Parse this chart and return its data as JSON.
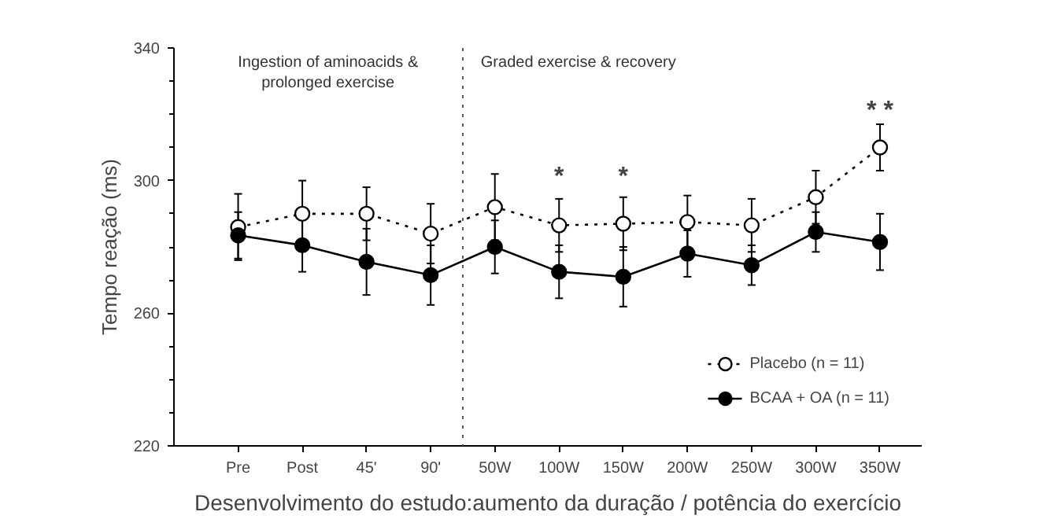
{
  "chart_data": {
    "type": "line",
    "xlabel": "Desenvolvimento do estudo:aumento da duração / potência do exercício",
    "ylabel": "Tempo reação (ms)",
    "categories": [
      "Pre",
      "Post",
      "45'",
      "90'",
      "50W",
      "100W",
      "150W",
      "200W",
      "250W",
      "300W",
      "350W"
    ],
    "series": [
      {
        "name": "Placebo (n = 11)",
        "color": "#000000",
        "line_style": "dotted",
        "marker": "circle",
        "values": [
          286,
          290,
          290,
          284,
          292,
          286.5,
          287,
          287.5,
          286.5,
          295,
          310
        ],
        "errors": [
          10,
          10,
          8,
          9,
          10,
          8,
          8,
          8,
          8,
          8,
          7
        ]
      },
      {
        "name": "BCAA + OA (n = 11)",
        "color": "#000000",
        "line_style": "solid",
        "marker": "circle",
        "values": [
          283.5,
          280.5,
          275.5,
          271.5,
          280,
          272.5,
          271,
          278,
          274.5,
          284.5,
          281.5
        ],
        "errors": [
          7,
          8,
          10,
          9,
          8,
          8,
          9,
          7,
          6,
          6,
          8.5
        ]
      }
    ],
    "ylim": [
      220,
      340
    ],
    "yticks": [
      220,
      260,
      300,
      340
    ],
    "grid": false,
    "legend": "bottom right",
    "annotations": [
      "Ingestion of aminoacids &\nprolonged exercise",
      "Graded exercise & recovery",
      "*",
      "*",
      "* *"
    ]
  }
}
